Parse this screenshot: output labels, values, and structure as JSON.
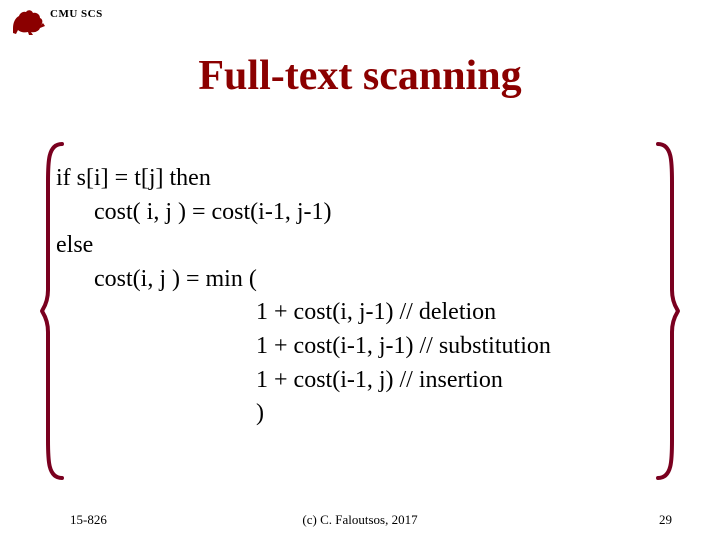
{
  "header": {
    "label": "CMU SCS"
  },
  "title": {
    "text": "Full-text scanning",
    "color": "#8b0000"
  },
  "bracket": {
    "color": "#7a001f",
    "stroke_width": 4
  },
  "logo": {
    "color": "#8b0000"
  },
  "content": {
    "lines": [
      {
        "text": "if s[i] = t[j] then",
        "indent": 0
      },
      {
        "text": "cost( i, j ) = cost(i-1, j-1)",
        "indent": 1
      },
      {
        "text": "else",
        "indent": 0
      },
      {
        "text": "cost(i, j ) = min (",
        "indent": 1
      },
      {
        "text": "1 + cost(i, j-1) // deletion",
        "indent": 2
      },
      {
        "text": "1 + cost(i-1, j-1) // substitution",
        "indent": 2
      },
      {
        "text": "1 + cost(i-1, j) // insertion",
        "indent": 2
      },
      {
        "text": ")",
        "indent": 2
      }
    ]
  },
  "footer": {
    "course": "15-826",
    "copyright": "(c) C. Faloutsos, 2017",
    "pagenum": "29"
  }
}
